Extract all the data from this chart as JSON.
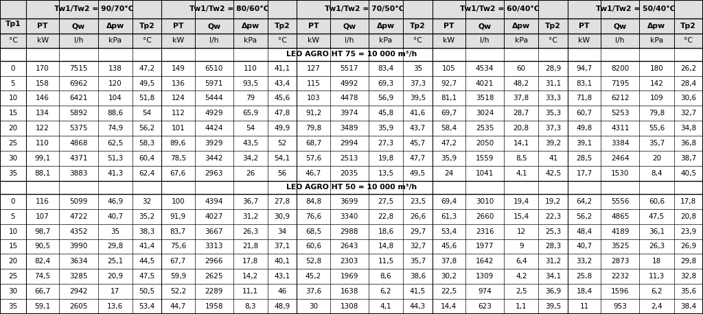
{
  "col_groups": [
    {
      "label": "Tw1/Tw2 = 90/70°C"
    },
    {
      "label": "Tw1/Tw2 = 80/60°C"
    },
    {
      "label": "Tw1/Tw2 = 70/50°C"
    },
    {
      "label": "Tw1/Tw2 = 60/40°C"
    },
    {
      "label": "Tw1/Tw2 = 50/40°C"
    }
  ],
  "sub_headers": [
    "PT",
    "Qw",
    "Δpw",
    "Tp2"
  ],
  "units_row": [
    "kW",
    "l/h",
    "kPa",
    "°C"
  ],
  "ht75_label": "LEO AGRO HT 75 = 10 000 m³/h",
  "ht50_label": "LEO AGRO HT 50 = 10 000 m³/h",
  "tp1_col_label": "Tp1",
  "tp1_unit": "°C",
  "bg_header": "#e0e0e0",
  "bg_white": "#ffffff",
  "bg_label": "#f0f0f0",
  "ht75_data": [
    [
      0,
      170,
      7515,
      138,
      47.2,
      149,
      6510,
      110,
      41.1,
      127,
      5517,
      83.4,
      35,
      105,
      4534,
      60,
      28.9,
      94.7,
      8200,
      180,
      26.2
    ],
    [
      5,
      158,
      6962,
      120,
      49.5,
      136,
      5971,
      93.5,
      43.4,
      115,
      4992,
      69.3,
      37.3,
      92.7,
      4021,
      48.2,
      31.1,
      83.1,
      7195,
      142,
      28.4
    ],
    [
      10,
      146,
      6421,
      104,
      51.8,
      124,
      5444,
      79,
      45.6,
      103,
      4478,
      56.9,
      39.5,
      81.1,
      3518,
      37.8,
      33.3,
      71.8,
      6212,
      109,
      30.6
    ],
    [
      15,
      134,
      5892,
      88.6,
      54,
      112,
      4929,
      65.9,
      47.8,
      91.2,
      3974,
      45.8,
      41.6,
      69.7,
      3024,
      28.7,
      35.3,
      60.7,
      5253,
      79.8,
      32.7
    ],
    [
      20,
      122,
      5375,
      74.9,
      56.2,
      101,
      4424,
      54,
      49.9,
      79.8,
      3489,
      35.9,
      43.7,
      58.4,
      2535,
      20.8,
      37.3,
      49.8,
      4311,
      55.6,
      34.8
    ],
    [
      25,
      110,
      4868,
      62.5,
      58.3,
      89.6,
      3929,
      43.5,
      52,
      68.7,
      2994,
      27.3,
      45.7,
      47.2,
      2050,
      14.1,
      39.2,
      39.1,
      3384,
      35.7,
      36.8
    ],
    [
      30,
      99.1,
      4371,
      51.3,
      60.4,
      78.5,
      3442,
      34.2,
      54.1,
      57.6,
      2513,
      19.8,
      47.7,
      35.9,
      1559,
      8.5,
      41,
      28.5,
      2464,
      20,
      38.7
    ],
    [
      35,
      88.1,
      3883,
      41.3,
      62.4,
      67.6,
      2963,
      26,
      56,
      46.7,
      2035,
      13.5,
      49.5,
      24,
      1041,
      4.1,
      42.5,
      17.7,
      1530,
      8.4,
      40.5
    ]
  ],
  "ht50_data": [
    [
      0,
      116,
      5099,
      46.9,
      32,
      100,
      4394,
      36.7,
      27.8,
      84.8,
      3699,
      27.5,
      23.5,
      69.4,
      3010,
      19.4,
      19.2,
      64.2,
      5556,
      60.6,
      17.8
    ],
    [
      5,
      107,
      4722,
      40.7,
      35.2,
      91.9,
      4027,
      31.2,
      30.9,
      76.6,
      3340,
      22.8,
      26.6,
      61.3,
      2660,
      15.4,
      22.3,
      56.2,
      4865,
      47.5,
      20.8
    ],
    [
      10,
      98.7,
      4352,
      35,
      38.3,
      83.7,
      3667,
      26.3,
      34,
      68.5,
      2988,
      18.6,
      29.7,
      53.4,
      2316,
      12,
      25.3,
      48.4,
      4189,
      36.1,
      23.9
    ],
    [
      15,
      90.5,
      3990,
      29.8,
      41.4,
      75.6,
      3313,
      21.8,
      37.1,
      60.6,
      2643,
      14.8,
      32.7,
      45.6,
      1977,
      9,
      28.3,
      40.7,
      3525,
      26.3,
      26.9
    ],
    [
      20,
      82.4,
      3634,
      25.1,
      44.5,
      67.7,
      2966,
      17.8,
      40.1,
      52.8,
      2303,
      11.5,
      35.7,
      37.8,
      1642,
      6.4,
      31.2,
      33.2,
      2873,
      18,
      29.8
    ],
    [
      25,
      74.5,
      3285,
      20.9,
      47.5,
      59.9,
      2625,
      14.2,
      43.1,
      45.2,
      1969,
      8.6,
      38.6,
      30.2,
      1309,
      4.2,
      34.1,
      25.8,
      2232,
      11.3,
      32.8
    ],
    [
      30,
      66.7,
      2942,
      17,
      50.5,
      52.2,
      2289,
      11.1,
      46,
      37.6,
      1638,
      6.2,
      41.5,
      22.5,
      974,
      2.5,
      36.9,
      18.4,
      1596,
      6.2,
      35.6
    ],
    [
      35,
      59.1,
      2605,
      13.6,
      53.4,
      44.7,
      1958,
      8.3,
      48.9,
      30,
      1308,
      4.1,
      44.3,
      14.4,
      623,
      1.1,
      39.5,
      11,
      953,
      2.4,
      38.4
    ]
  ]
}
